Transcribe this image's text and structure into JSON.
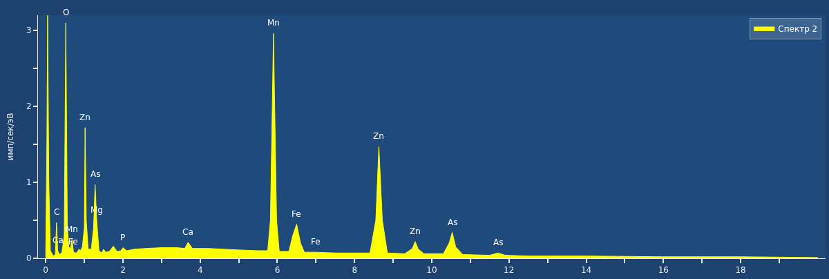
{
  "chart_data": {
    "type": "area",
    "ylabel": "имп/сек/эВ",
    "x": [
      0.0,
      0.03,
      0.05,
      0.08,
      0.12,
      0.2,
      0.25,
      0.28,
      0.31,
      0.36,
      0.42,
      0.48,
      0.52,
      0.56,
      0.6,
      0.64,
      0.68,
      0.72,
      0.8,
      0.86,
      0.9,
      0.95,
      1.0,
      1.02,
      1.05,
      1.1,
      1.18,
      1.24,
      1.28,
      1.32,
      1.38,
      1.45,
      1.5,
      1.55,
      1.65,
      1.75,
      1.85,
      1.95,
      2.0,
      2.1,
      2.3,
      2.6,
      3.0,
      3.4,
      3.6,
      3.69,
      3.8,
      4.2,
      4.6,
      5.0,
      5.5,
      5.75,
      5.82,
      5.9,
      5.98,
      6.05,
      6.3,
      6.4,
      6.5,
      6.6,
      6.7,
      7.0,
      7.5,
      8.0,
      8.4,
      8.55,
      8.63,
      8.72,
      8.85,
      9.3,
      9.5,
      9.57,
      9.65,
      9.8,
      10.3,
      10.45,
      10.53,
      10.62,
      10.8,
      11.5,
      11.72,
      11.9,
      12.5,
      14,
      16,
      18,
      20
    ],
    "series": [
      {
        "name": "Спектр 2",
        "color": "#ffff00",
        "values": [
          0.02,
          1.5,
          3.2,
          1.0,
          0.1,
          0.03,
          0.05,
          0.47,
          0.1,
          0.05,
          0.08,
          0.3,
          3.1,
          0.4,
          0.15,
          0.12,
          0.25,
          0.08,
          0.07,
          0.12,
          0.1,
          0.15,
          0.4,
          1.72,
          0.5,
          0.12,
          0.12,
          0.4,
          0.97,
          0.5,
          0.1,
          0.07,
          0.12,
          0.08,
          0.09,
          0.16,
          0.09,
          0.1,
          0.14,
          0.1,
          0.12,
          0.13,
          0.14,
          0.14,
          0.13,
          0.21,
          0.13,
          0.13,
          0.12,
          0.11,
          0.1,
          0.1,
          0.5,
          2.96,
          0.5,
          0.09,
          0.09,
          0.3,
          0.45,
          0.2,
          0.08,
          0.08,
          0.07,
          0.07,
          0.07,
          0.5,
          1.47,
          0.5,
          0.07,
          0.06,
          0.13,
          0.22,
          0.12,
          0.06,
          0.06,
          0.2,
          0.34,
          0.15,
          0.05,
          0.04,
          0.07,
          0.04,
          0.03,
          0.03,
          0.02,
          0.02,
          0.01
        ]
      }
    ],
    "xlim": [
      -0.2,
      20.2
    ],
    "ylim": [
      0,
      3.2
    ],
    "xticks": [
      0,
      {
        "value": 1,
        "label": null
      },
      2,
      {
        "value": 3,
        "label": null
      },
      4,
      {
        "value": 5,
        "label": null
      },
      6,
      {
        "value": 7,
        "label": null
      },
      8,
      {
        "value": 9,
        "label": null
      },
      10,
      {
        "value": 11,
        "label": null
      },
      12,
      {
        "value": 13,
        "label": null
      },
      14,
      {
        "value": 15,
        "label": null
      },
      16,
      {
        "value": 17,
        "label": null
      },
      18,
      {
        "value": 19,
        "label": null
      }
    ],
    "yticks": [
      0,
      {
        "value": 0.5,
        "label": null
      },
      1,
      {
        "value": 1.5,
        "label": null
      },
      2,
      {
        "value": 2.5,
        "label": null
      },
      3
    ],
    "grid": false,
    "legend": "top right",
    "annotations": [
      {
        "text": "O",
        "x": 0.52,
        "y": 3.1
      },
      {
        "text": "C",
        "x": 0.28,
        "y": 0.47
      },
      {
        "text": "Ca",
        "x": 0.31,
        "y": 0.1
      },
      {
        "text": "Mn",
        "x": 0.68,
        "y": 0.25
      },
      {
        "text": "Fe",
        "x": 0.72,
        "y": 0.08
      },
      {
        "text": "Zn",
        "x": 1.02,
        "y": 1.72
      },
      {
        "text": "As",
        "x": 1.28,
        "y": 0.97
      },
      {
        "text": "Mg",
        "x": 1.32,
        "y": 0.5
      },
      {
        "text": "P",
        "x": 2.0,
        "y": 0.14
      },
      {
        "text": "Ca",
        "x": 3.69,
        "y": 0.21
      },
      {
        "text": "Mn",
        "x": 5.9,
        "y": 2.96
      },
      {
        "text": "Fe",
        "x": 6.5,
        "y": 0.45
      },
      {
        "text": "Fe",
        "x": 7.0,
        "y": 0.08
      },
      {
        "text": "Zn",
        "x": 8.63,
        "y": 1.47
      },
      {
        "text": "Zn",
        "x": 9.57,
        "y": 0.22
      },
      {
        "text": "As",
        "x": 10.53,
        "y": 0.34
      },
      {
        "text": "As",
        "x": 11.72,
        "y": 0.07
      }
    ]
  }
}
